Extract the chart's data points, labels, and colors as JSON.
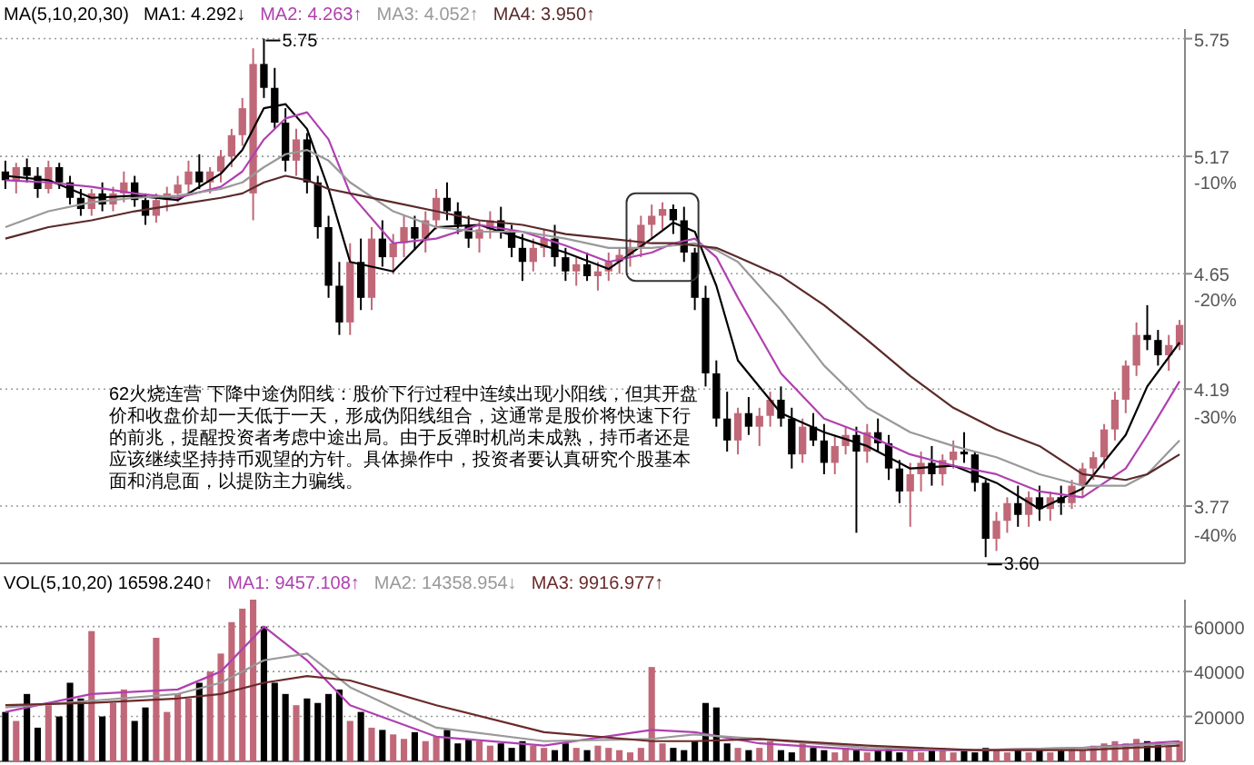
{
  "chart_data": [
    {
      "type": "candlestick",
      "title": "MA(5,10,20,30)",
      "legend": "top left",
      "log": true,
      "grid": "y",
      "tick_labels": "y",
      "categories": [
        null,
        null,
        null,
        null,
        null,
        null,
        null,
        null,
        null,
        null,
        null,
        null,
        null,
        null,
        null,
        null,
        null,
        null,
        null,
        null,
        null,
        null,
        null,
        null,
        null,
        null,
        null,
        null,
        null,
        null,
        null,
        null,
        null,
        null,
        null,
        null,
        null,
        null,
        null,
        null,
        null,
        null,
        null,
        null,
        null,
        null,
        null,
        null,
        null,
        null,
        null,
        null,
        null,
        null,
        null,
        null,
        null,
        null,
        null,
        null,
        null,
        null,
        null,
        null,
        null,
        null,
        null,
        null,
        null,
        null,
        null,
        null,
        null,
        null,
        null,
        null,
        null,
        null,
        null,
        null,
        null,
        null,
        null,
        null,
        null,
        null,
        null,
        null,
        null,
        null,
        null,
        null,
        null,
        null,
        null,
        null,
        null,
        null,
        null,
        null,
        null,
        null,
        null,
        null,
        null,
        null,
        null,
        null,
        null,
        null
      ],
      "ohlc": [
        [
          5.1,
          5.15,
          5.02,
          5.06
        ],
        [
          5.06,
          5.14,
          5.0,
          5.12
        ],
        [
          5.12,
          5.16,
          5.05,
          5.08
        ],
        [
          5.08,
          5.12,
          4.98,
          5.02
        ],
        [
          5.02,
          5.15,
          5.0,
          5.12
        ],
        [
          5.12,
          5.14,
          5.02,
          5.05
        ],
        [
          5.05,
          5.08,
          4.95,
          4.98
        ],
        [
          4.98,
          5.02,
          4.9,
          4.93
        ],
        [
          4.93,
          5.02,
          4.9,
          5.0
        ],
        [
          5.0,
          5.05,
          4.92,
          4.95
        ],
        [
          4.95,
          5.03,
          4.92,
          5.0
        ],
        [
          5.0,
          5.1,
          4.96,
          5.05
        ],
        [
          5.05,
          5.08,
          4.94,
          4.97
        ],
        [
          4.97,
          5.0,
          4.86,
          4.9
        ],
        [
          4.9,
          5.0,
          4.87,
          4.97
        ],
        [
          4.97,
          5.03,
          4.92,
          5.0
        ],
        [
          5.0,
          5.08,
          4.96,
          5.04
        ],
        [
          5.04,
          5.15,
          5.0,
          5.1
        ],
        [
          5.1,
          5.18,
          5.02,
          5.05
        ],
        [
          5.05,
          5.12,
          5.0,
          5.1
        ],
        [
          5.1,
          5.2,
          5.05,
          5.17
        ],
        [
          5.17,
          5.3,
          5.12,
          5.27
        ],
        [
          5.27,
          5.45,
          5.22,
          5.4
        ],
        [
          5.0,
          5.7,
          4.88,
          5.62
        ],
        [
          5.62,
          5.75,
          5.45,
          5.5
        ],
        [
          5.5,
          5.6,
          5.3,
          5.33
        ],
        [
          5.33,
          5.4,
          5.1,
          5.15
        ],
        [
          5.15,
          5.3,
          5.08,
          5.25
        ],
        [
          5.25,
          5.28,
          5.0,
          5.05
        ],
        [
          5.05,
          5.08,
          4.8,
          4.85
        ],
        [
          4.85,
          4.9,
          4.55,
          4.6
        ],
        [
          4.6,
          4.7,
          4.4,
          4.45
        ],
        [
          4.45,
          4.78,
          4.4,
          4.7
        ],
        [
          4.7,
          4.8,
          4.5,
          4.55
        ],
        [
          4.55,
          4.85,
          4.5,
          4.8
        ],
        [
          4.8,
          4.88,
          4.68,
          4.72
        ],
        [
          4.72,
          4.82,
          4.65,
          4.78
        ],
        [
          4.78,
          4.9,
          4.72,
          4.85
        ],
        [
          4.85,
          4.9,
          4.75,
          4.8
        ],
        [
          4.8,
          4.92,
          4.74,
          4.88
        ],
        [
          4.88,
          5.02,
          4.84,
          4.98
        ],
        [
          4.98,
          5.05,
          4.88,
          4.92
        ],
        [
          4.92,
          4.96,
          4.82,
          4.86
        ],
        [
          4.86,
          4.9,
          4.76,
          4.8
        ],
        [
          4.8,
          4.88,
          4.74,
          4.84
        ],
        [
          4.84,
          4.92,
          4.8,
          4.88
        ],
        [
          4.88,
          4.94,
          4.8,
          4.83
        ],
        [
          4.83,
          4.86,
          4.72,
          4.76
        ],
        [
          4.76,
          4.82,
          4.62,
          4.7
        ],
        [
          4.7,
          4.8,
          4.66,
          4.76
        ],
        [
          4.76,
          4.84,
          4.72,
          4.8
        ],
        [
          4.8,
          4.86,
          4.68,
          4.72
        ],
        [
          4.72,
          4.76,
          4.62,
          4.66
        ],
        [
          4.66,
          4.72,
          4.6,
          4.69
        ],
        [
          4.69,
          4.74,
          4.62,
          4.64
        ],
        [
          4.64,
          4.7,
          4.58,
          4.66
        ],
        [
          4.66,
          4.74,
          4.62,
          4.7
        ],
        [
          4.7,
          4.76,
          4.65,
          4.73
        ],
        [
          4.73,
          4.8,
          4.68,
          4.76
        ],
        [
          4.76,
          4.9,
          4.72,
          4.86
        ],
        [
          4.86,
          4.95,
          4.8,
          4.9
        ],
        [
          4.9,
          4.96,
          4.84,
          4.93
        ],
        [
          4.93,
          4.95,
          4.82,
          4.88
        ],
        [
          4.88,
          4.94,
          4.7,
          4.74
        ],
        [
          4.74,
          4.76,
          4.5,
          4.55
        ],
        [
          4.55,
          4.6,
          4.2,
          4.25
        ],
        [
          4.25,
          4.3,
          4.05,
          4.08
        ],
        [
          4.08,
          4.18,
          3.96,
          4.0
        ],
        [
          4.0,
          4.12,
          3.95,
          4.1
        ],
        [
          4.1,
          4.16,
          4.02,
          4.05
        ],
        [
          4.05,
          4.12,
          3.98,
          4.09
        ],
        [
          4.09,
          4.18,
          4.05,
          4.15
        ],
        [
          4.15,
          4.2,
          4.05,
          4.08
        ],
        [
          4.08,
          4.12,
          3.9,
          3.95
        ],
        [
          3.95,
          4.08,
          3.92,
          4.05
        ],
        [
          4.05,
          4.1,
          3.98,
          4.0
        ],
        [
          4.0,
          4.06,
          3.88,
          3.92
        ],
        [
          3.92,
          4.02,
          3.88,
          3.98
        ],
        [
          3.98,
          4.05,
          3.95,
          4.02
        ],
        [
          4.02,
          4.05,
          3.68,
          3.96
        ],
        [
          3.96,
          4.06,
          3.92,
          4.03
        ],
        [
          4.03,
          4.08,
          3.96,
          3.99
        ],
        [
          3.99,
          4.02,
          3.86,
          3.9
        ],
        [
          3.9,
          3.93,
          3.78,
          3.82
        ],
        [
          3.82,
          3.92,
          3.7,
          3.88
        ],
        [
          3.88,
          3.96,
          3.82,
          3.92
        ],
        [
          3.92,
          3.98,
          3.84,
          3.88
        ],
        [
          3.88,
          3.95,
          3.84,
          3.93
        ],
        [
          3.93,
          4.0,
          3.9,
          3.96
        ],
        [
          3.96,
          4.03,
          3.92,
          3.95
        ],
        [
          3.95,
          3.96,
          3.82,
          3.85
        ],
        [
          3.85,
          3.86,
          3.6,
          3.66
        ],
        [
          3.66,
          3.75,
          3.62,
          3.72
        ],
        [
          3.72,
          3.8,
          3.68,
          3.78
        ],
        [
          3.78,
          3.84,
          3.7,
          3.74
        ],
        [
          3.74,
          3.82,
          3.7,
          3.8
        ],
        [
          3.8,
          3.84,
          3.72,
          3.76
        ],
        [
          3.76,
          3.82,
          3.72,
          3.8
        ],
        [
          3.8,
          3.84,
          3.74,
          3.78
        ],
        [
          3.78,
          3.86,
          3.76,
          3.84
        ],
        [
          3.84,
          3.92,
          3.8,
          3.9
        ],
        [
          3.9,
          3.96,
          3.86,
          3.94
        ],
        [
          3.94,
          4.06,
          3.9,
          4.04
        ],
        [
          4.04,
          4.18,
          4.0,
          4.15
        ],
        [
          4.15,
          4.3,
          4.1,
          4.28
        ],
        [
          4.28,
          4.45,
          4.24,
          4.4
        ],
        [
          4.4,
          4.52,
          4.34,
          4.38
        ],
        [
          4.38,
          4.42,
          4.28,
          4.32
        ],
        [
          4.32,
          4.4,
          4.26,
          4.36
        ],
        [
          4.36,
          4.46,
          4.34,
          4.44
        ]
      ],
      "series": [
        {
          "name": "MA1: 4.292↓",
          "type": "line",
          "color": "#000000",
          "values": [
            5.08,
            null,
            null,
            null,
            5.06,
            null,
            null,
            null,
            4.98,
            null,
            null,
            null,
            4.99,
            null,
            null,
            null,
            4.97,
            null,
            null,
            null,
            5.09,
            null,
            5.2,
            null,
            5.4,
            null,
            5.42,
            null,
            5.3,
            null,
            5.02,
            null,
            4.7,
            null,
            null,
            null,
            4.66,
            null,
            null,
            null,
            4.85,
            null,
            null,
            null,
            4.86,
            null,
            null,
            null,
            4.8,
            null,
            null,
            null,
            4.74,
            null,
            null,
            null,
            4.67,
            null,
            null,
            null,
            4.8,
            null,
            4.87,
            null,
            4.83,
            null,
            4.6,
            null,
            4.3,
            null,
            null,
            null,
            4.1,
            null,
            null,
            null,
            4.03,
            null,
            null,
            null,
            3.98,
            null,
            null,
            null,
            3.9,
            null,
            null,
            null,
            3.91,
            null,
            null,
            null,
            3.85,
            null,
            null,
            null,
            3.76,
            null,
            null,
            null,
            3.83,
            null,
            null,
            null,
            4.02,
            null,
            4.2,
            null,
            null,
            4.37
          ]
        },
        {
          "name": "MA2: 4.263↑",
          "type": "line",
          "color": "#b040b0",
          "values": [
            5.06,
            null,
            null,
            null,
            5.05,
            null,
            null,
            null,
            5.03,
            null,
            null,
            null,
            5.0,
            null,
            null,
            null,
            4.98,
            null,
            null,
            null,
            5.03,
            null,
            5.1,
            null,
            5.25,
            null,
            5.35,
            null,
            5.38,
            null,
            5.25,
            null,
            5.0,
            null,
            null,
            null,
            4.78,
            null,
            null,
            null,
            4.8,
            null,
            null,
            null,
            4.86,
            null,
            null,
            null,
            4.83,
            null,
            null,
            null,
            4.77,
            null,
            null,
            null,
            4.7,
            null,
            null,
            null,
            4.74,
            null,
            4.78,
            null,
            4.8,
            null,
            4.72,
            null,
            4.55,
            null,
            null,
            null,
            4.25,
            null,
            null,
            null,
            4.08,
            null,
            null,
            null,
            4.02,
            null,
            null,
            null,
            3.95,
            null,
            null,
            null,
            3.91,
            null,
            null,
            null,
            3.88,
            null,
            null,
            null,
            3.82,
            null,
            null,
            null,
            3.8,
            null,
            null,
            null,
            3.9,
            null,
            4.02,
            null,
            null,
            4.22
          ]
        },
        {
          "name": "MA3: 4.052↑",
          "type": "line",
          "color": "#999999",
          "values": [
            4.85,
            null,
            null,
            null,
            4.92,
            null,
            null,
            null,
            4.96,
            null,
            null,
            null,
            4.98,
            null,
            null,
            null,
            4.99,
            null,
            null,
            null,
            5.02,
            null,
            5.05,
            null,
            5.12,
            null,
            5.18,
            null,
            5.2,
            null,
            5.15,
            null,
            5.05,
            null,
            null,
            null,
            4.92,
            null,
            null,
            null,
            4.85,
            null,
            null,
            null,
            4.83,
            null,
            null,
            null,
            4.83,
            null,
            null,
            null,
            4.8,
            null,
            null,
            null,
            4.76,
            null,
            null,
            null,
            4.76,
            null,
            4.77,
            null,
            4.78,
            null,
            4.75,
            null,
            4.7,
            null,
            null,
            null,
            4.5,
            null,
            null,
            null,
            4.28,
            null,
            null,
            null,
            4.12,
            null,
            null,
            null,
            4.03,
            null,
            null,
            null,
            3.98,
            null,
            null,
            null,
            3.94,
            null,
            null,
            null,
            3.88,
            null,
            null,
            null,
            3.84,
            null,
            null,
            null,
            3.84,
            null,
            3.88,
            null,
            null,
            4.0
          ]
        },
        {
          "name": "MA4: 3.950↑",
          "type": "line",
          "color": "#5a2a2a",
          "values": [
            4.8,
            null,
            null,
            null,
            4.85,
            null,
            null,
            null,
            4.88,
            null,
            null,
            null,
            4.92,
            null,
            null,
            null,
            4.95,
            null,
            null,
            null,
            4.98,
            null,
            5.0,
            null,
            5.05,
            null,
            5.08,
            null,
            5.06,
            null,
            5.02,
            null,
            5.0,
            null,
            null,
            null,
            4.96,
            null,
            null,
            null,
            4.92,
            null,
            null,
            null,
            4.88,
            null,
            null,
            null,
            4.86,
            null,
            null,
            null,
            4.82,
            null,
            null,
            null,
            4.8,
            null,
            null,
            null,
            4.78,
            null,
            4.78,
            null,
            4.77,
            null,
            4.76,
            null,
            4.72,
            null,
            null,
            null,
            4.64,
            null,
            null,
            null,
            4.52,
            null,
            null,
            null,
            4.38,
            null,
            null,
            null,
            4.24,
            null,
            null,
            null,
            4.12,
            null,
            null,
            null,
            4.04,
            null,
            null,
            null,
            3.98,
            null,
            null,
            null,
            3.88,
            null,
            null,
            null,
            3.86,
            null,
            3.88,
            null,
            null,
            3.95
          ]
        }
      ],
      "ylim": [
        3.58,
        5.8
      ],
      "yticks": [
        3.77,
        4.19,
        4.65,
        5.17,
        5.75
      ],
      "y2lim": [
        -42.5,
        3.0
      ],
      "y2ticks": [
        {
          "value": -40,
          "label": "-40%"
        },
        {
          "value": -30,
          "label": "-30%"
        },
        {
          "value": -20,
          "label": "-20%"
        },
        {
          "value": -10,
          "label": "-10%"
        }
      ],
      "annotations": [
        "5.75",
        "3.60",
        "62火烧连营  下降中途伪阳线：股价下行过程中连续出现小阳线，但其开盘价和收盘价却一天低于一天，形成伪阳线组合，这通常是股价将快速下行的前兆，提醒投资者考虑中途出局。由于反弹时机尚未成熟，持币者还是应该继续坚持持币观望的方针。具体操作中，投资者要认真研究个股基本面和消息面，以提防主力骗线。"
      ]
    },
    {
      "type": "bar",
      "legend": "top left",
      "grid": "y",
      "tick_labels": "y",
      "categories": [
        null,
        null,
        null,
        null,
        null,
        null,
        null,
        null,
        null,
        null,
        null,
        null,
        null,
        null,
        null,
        null,
        null,
        null,
        null,
        null,
        null,
        null,
        null,
        null,
        null,
        null,
        null,
        null,
        null,
        null,
        null,
        null,
        null,
        null,
        null,
        null,
        null,
        null,
        null,
        null,
        null,
        null,
        null,
        null,
        null,
        null,
        null,
        null,
        null,
        null,
        null,
        null,
        null,
        null,
        null,
        null,
        null,
        null,
        null,
        null,
        null,
        null,
        null,
        null,
        null,
        null,
        null,
        null,
        null,
        null,
        null,
        null,
        null,
        null,
        null,
        null,
        null,
        null,
        null,
        null,
        null,
        null,
        null,
        null,
        null,
        null,
        null,
        null,
        null,
        null,
        null,
        null,
        null,
        null,
        null,
        null,
        null,
        null,
        null,
        null,
        null,
        null,
        null,
        null,
        null,
        null,
        null,
        null,
        null,
        null
      ],
      "series": [
        {
          "name": "VOL(5,10,20) 16598.240↑",
          "colors": [
            "#000000",
            "#c06878",
            "#000000",
            "#000000",
            "#c06878",
            "#000000",
            "#000000",
            "#000000",
            "#c06878",
            "#000000",
            "#c06878",
            "#c06878",
            "#000000",
            "#000000",
            "#c06878",
            "#c06878",
            "#c06878",
            "#c06878",
            "#000000",
            "#c06878",
            "#c06878",
            "#c06878",
            "#c06878",
            "#c06878",
            "#000000",
            "#000000",
            "#000000",
            "#c06878",
            "#000000",
            "#000000",
            "#000000",
            "#000000",
            "#c06878",
            "#000000",
            "#c06878",
            "#000000",
            "#c06878",
            "#c06878",
            "#000000",
            "#c06878",
            "#c06878",
            "#000000",
            "#000000",
            "#000000",
            "#c06878",
            "#c06878",
            "#000000",
            "#000000",
            "#000000",
            "#c06878",
            "#c06878",
            "#000000",
            "#000000",
            "#c06878",
            "#000000",
            "#c06878",
            "#c06878",
            "#c06878",
            "#c06878",
            "#c06878",
            "#c06878",
            "#c06878",
            "#000000",
            "#000000",
            "#000000",
            "#000000",
            "#000000",
            "#000000",
            "#c06878",
            "#000000",
            "#c06878",
            "#c06878",
            "#000000",
            "#000000",
            "#c06878",
            "#000000",
            "#000000",
            "#c06878",
            "#c06878",
            "#000000",
            "#c06878",
            "#000000",
            "#000000",
            "#000000",
            "#c06878",
            "#c06878",
            "#000000",
            "#c06878",
            "#c06878",
            "#000000",
            "#000000",
            "#000000",
            "#c06878",
            "#c06878",
            "#000000",
            "#c06878",
            "#000000",
            "#c06878",
            "#000000",
            "#c06878",
            "#c06878",
            "#c06878",
            "#c06878",
            "#c06878",
            "#c06878",
            "#c06878",
            "#000000",
            "#000000",
            "#c06878",
            "#c06878"
          ],
          "values": [
            22000,
            18000,
            30000,
            15000,
            25000,
            20000,
            35000,
            28000,
            58000,
            20000,
            26000,
            32000,
            18000,
            24000,
            55000,
            22000,
            30000,
            28000,
            35000,
            40000,
            48000,
            62000,
            68000,
            72000,
            60000,
            35000,
            30000,
            25000,
            28000,
            26000,
            30000,
            32000,
            18000,
            22000,
            15000,
            14000,
            12000,
            10000,
            13000,
            9000,
            11000,
            14000,
            8000,
            10000,
            9000,
            7000,
            8000,
            6000,
            9000,
            7000,
            6000,
            5000,
            8000,
            6000,
            5000,
            7000,
            6000,
            5000,
            4000,
            6000,
            42000,
            8000,
            6000,
            5000,
            9000,
            26000,
            24000,
            8000,
            6000,
            5000,
            6000,
            9000,
            5000,
            4000,
            8000,
            6000,
            5000,
            4000,
            6000,
            5000,
            4000,
            5000,
            6000,
            4000,
            5000,
            4000,
            5000,
            6000,
            4000,
            5000,
            4000,
            6000,
            5000,
            4000,
            5000,
            4000,
            6000,
            4000,
            5000,
            6000,
            5000,
            7000,
            8000,
            9000,
            8000,
            10000,
            9000,
            8000,
            7000,
            9000
          ]
        },
        {
          "name": "MA1: 9457.108↑",
          "type": "line",
          "color": "#b040b0",
          "values": [
            22000,
            null,
            null,
            null,
            null,
            null,
            null,
            null,
            30000,
            null,
            null,
            null,
            null,
            null,
            null,
            null,
            32000,
            null,
            null,
            null,
            40000,
            null,
            null,
            null,
            60000,
            null,
            null,
            null,
            45000,
            null,
            null,
            null,
            25000,
            null,
            null,
            null,
            null,
            null,
            null,
            null,
            11000,
            null,
            null,
            null,
            null,
            null,
            null,
            null,
            null,
            null,
            7000,
            null,
            null,
            null,
            null,
            null,
            null,
            null,
            null,
            null,
            14000,
            null,
            null,
            null,
            13000,
            null,
            null,
            null,
            null,
            null,
            8000,
            null,
            null,
            null,
            null,
            null,
            null,
            null,
            null,
            null,
            5000,
            null,
            null,
            null,
            null,
            null,
            null,
            null,
            null,
            null,
            5000,
            null,
            null,
            null,
            null,
            null,
            null,
            null,
            null,
            null,
            6000,
            null,
            null,
            null,
            null,
            null,
            null,
            null,
            null,
            9000
          ]
        },
        {
          "name": "MA2: 14358.954↓",
          "type": "line",
          "color": "#999999",
          "values": [
            24000,
            null,
            null,
            null,
            null,
            null,
            null,
            null,
            27000,
            null,
            null,
            null,
            null,
            null,
            null,
            null,
            30000,
            null,
            null,
            null,
            35000,
            null,
            null,
            null,
            45000,
            null,
            null,
            null,
            48000,
            null,
            null,
            null,
            33000,
            null,
            null,
            null,
            null,
            null,
            null,
            null,
            15000,
            null,
            null,
            null,
            null,
            null,
            null,
            null,
            null,
            null,
            9000,
            null,
            null,
            null,
            null,
            null,
            null,
            null,
            null,
            null,
            10000,
            null,
            null,
            null,
            12000,
            null,
            null,
            null,
            null,
            null,
            10000,
            null,
            null,
            null,
            null,
            null,
            null,
            null,
            null,
            null,
            6000,
            null,
            null,
            null,
            null,
            null,
            null,
            null,
            null,
            null,
            5000,
            null,
            null,
            null,
            null,
            null,
            null,
            null,
            null,
            null,
            6000,
            null,
            null,
            null,
            null,
            null,
            null,
            null,
            null,
            8000
          ]
        },
        {
          "name": "MA3: 9916.977↑",
          "type": "line",
          "color": "#6b2a2a",
          "values": [
            25000,
            null,
            null,
            null,
            null,
            null,
            null,
            null,
            26000,
            null,
            null,
            null,
            null,
            null,
            null,
            null,
            28000,
            null,
            null,
            null,
            30000,
            null,
            null,
            null,
            35000,
            null,
            null,
            null,
            38000,
            null,
            null,
            null,
            36000,
            null,
            null,
            null,
            null,
            null,
            null,
            null,
            25000,
            null,
            null,
            null,
            null,
            null,
            null,
            null,
            null,
            null,
            13000,
            null,
            null,
            null,
            null,
            null,
            null,
            null,
            null,
            null,
            9000,
            null,
            null,
            null,
            9000,
            null,
            null,
            null,
            null,
            null,
            10000,
            null,
            null,
            null,
            null,
            null,
            null,
            null,
            null,
            null,
            7000,
            null,
            null,
            null,
            null,
            null,
            null,
            null,
            null,
            null,
            5000,
            null,
            null,
            null,
            null,
            null,
            null,
            null,
            null,
            null,
            5000,
            null,
            null,
            null,
            null,
            null,
            null,
            null,
            null,
            7000
          ]
        }
      ],
      "ylim": [
        0,
        72000
      ],
      "yticks": [
        20000,
        40000,
        60000
      ]
    }
  ]
}
